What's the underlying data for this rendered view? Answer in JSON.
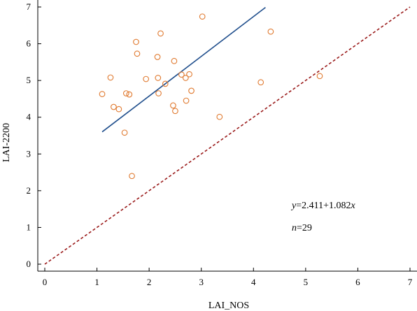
{
  "chart_data": {
    "type": "scatter",
    "xlabel": "LAI_NOS",
    "ylabel": "LAI-2200",
    "xlim": [
      0,
      7
    ],
    "ylim": [
      0,
      7
    ],
    "x_ticks": [
      "0",
      "1",
      "2",
      "3",
      "4",
      "5",
      "6",
      "7"
    ],
    "y_ticks": [
      "0",
      "1",
      "2",
      "3",
      "4",
      "5",
      "6",
      "7"
    ],
    "grid": false,
    "point_color": "#e07a30",
    "fit_color": "#1f4e8c",
    "identity_color": "#9b1c1c",
    "points": [
      {
        "x": 1.1,
        "y": 4.63
      },
      {
        "x": 1.26,
        "y": 5.08
      },
      {
        "x": 1.32,
        "y": 4.28
      },
      {
        "x": 1.42,
        "y": 4.22
      },
      {
        "x": 1.53,
        "y": 3.58
      },
      {
        "x": 1.56,
        "y": 4.65
      },
      {
        "x": 1.62,
        "y": 4.62
      },
      {
        "x": 1.67,
        "y": 2.4
      },
      {
        "x": 1.75,
        "y": 6.05
      },
      {
        "x": 1.77,
        "y": 5.73
      },
      {
        "x": 1.94,
        "y": 5.04
      },
      {
        "x": 2.16,
        "y": 5.64
      },
      {
        "x": 2.17,
        "y": 5.07
      },
      {
        "x": 2.18,
        "y": 4.65
      },
      {
        "x": 2.22,
        "y": 6.28
      },
      {
        "x": 2.31,
        "y": 4.91
      },
      {
        "x": 2.46,
        "y": 4.32
      },
      {
        "x": 2.48,
        "y": 5.53
      },
      {
        "x": 2.5,
        "y": 4.17
      },
      {
        "x": 2.62,
        "y": 5.16
      },
      {
        "x": 2.7,
        "y": 5.07
      },
      {
        "x": 2.71,
        "y": 4.45
      },
      {
        "x": 2.77,
        "y": 5.17
      },
      {
        "x": 2.81,
        "y": 4.72
      },
      {
        "x": 3.02,
        "y": 6.74
      },
      {
        "x": 3.35,
        "y": 4.01
      },
      {
        "x": 4.14,
        "y": 4.95
      },
      {
        "x": 4.33,
        "y": 6.33
      },
      {
        "x": 5.27,
        "y": 5.12
      }
    ],
    "fit_line": {
      "intercept": 2.411,
      "slope": 1.082,
      "x_range": [
        1.1,
        4.23
      ]
    },
    "identity_line": {
      "x_range": [
        0,
        7
      ]
    },
    "annotations": {
      "equation": "y=2.411+1.082x",
      "n": "n=29"
    }
  }
}
